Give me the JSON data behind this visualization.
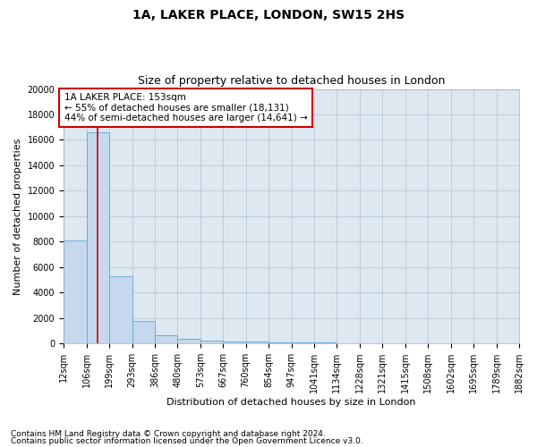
{
  "title": "1A, LAKER PLACE, LONDON, SW15 2HS",
  "subtitle": "Size of property relative to detached houses in London",
  "xlabel": "Distribution of detached houses by size in London",
  "ylabel": "Number of detached properties",
  "footnote1": "Contains HM Land Registry data © Crown copyright and database right 2024.",
  "footnote2": "Contains public sector information licensed under the Open Government Licence v3.0.",
  "annotation_line1": "1A LAKER PLACE: 153sqm",
  "annotation_line2": "← 55% of detached houses are smaller (18,131)",
  "annotation_line3": "44% of semi-detached houses are larger (14,641) →",
  "property_size": 153,
  "bar_edges": [
    12,
    106,
    199,
    293,
    386,
    480,
    573,
    667,
    760,
    854,
    947,
    1041,
    1134,
    1228,
    1321,
    1415,
    1508,
    1602,
    1695,
    1789,
    1882
  ],
  "bar_heights": [
    8100,
    16600,
    5300,
    1800,
    650,
    340,
    230,
    185,
    130,
    100,
    75,
    55,
    45,
    35,
    28,
    22,
    18,
    14,
    11,
    9
  ],
  "bar_color": "#c5d8ee",
  "bar_edge_color": "#6baed6",
  "red_line_color": "#cc0000",
  "annotation_box_edgecolor": "#cc0000",
  "background_color": "#ffffff",
  "grid_color": "#b8c8d8",
  "ax_bg_color": "#dde8f0",
  "ylim": [
    0,
    20000
  ],
  "yticks": [
    0,
    2000,
    4000,
    6000,
    8000,
    10000,
    12000,
    14000,
    16000,
    18000,
    20000
  ],
  "title_fontsize": 10,
  "subtitle_fontsize": 9,
  "ylabel_fontsize": 8,
  "xlabel_fontsize": 8,
  "tick_fontsize": 7,
  "footnote_fontsize": 6.5,
  "ann_fontsize": 7.5
}
